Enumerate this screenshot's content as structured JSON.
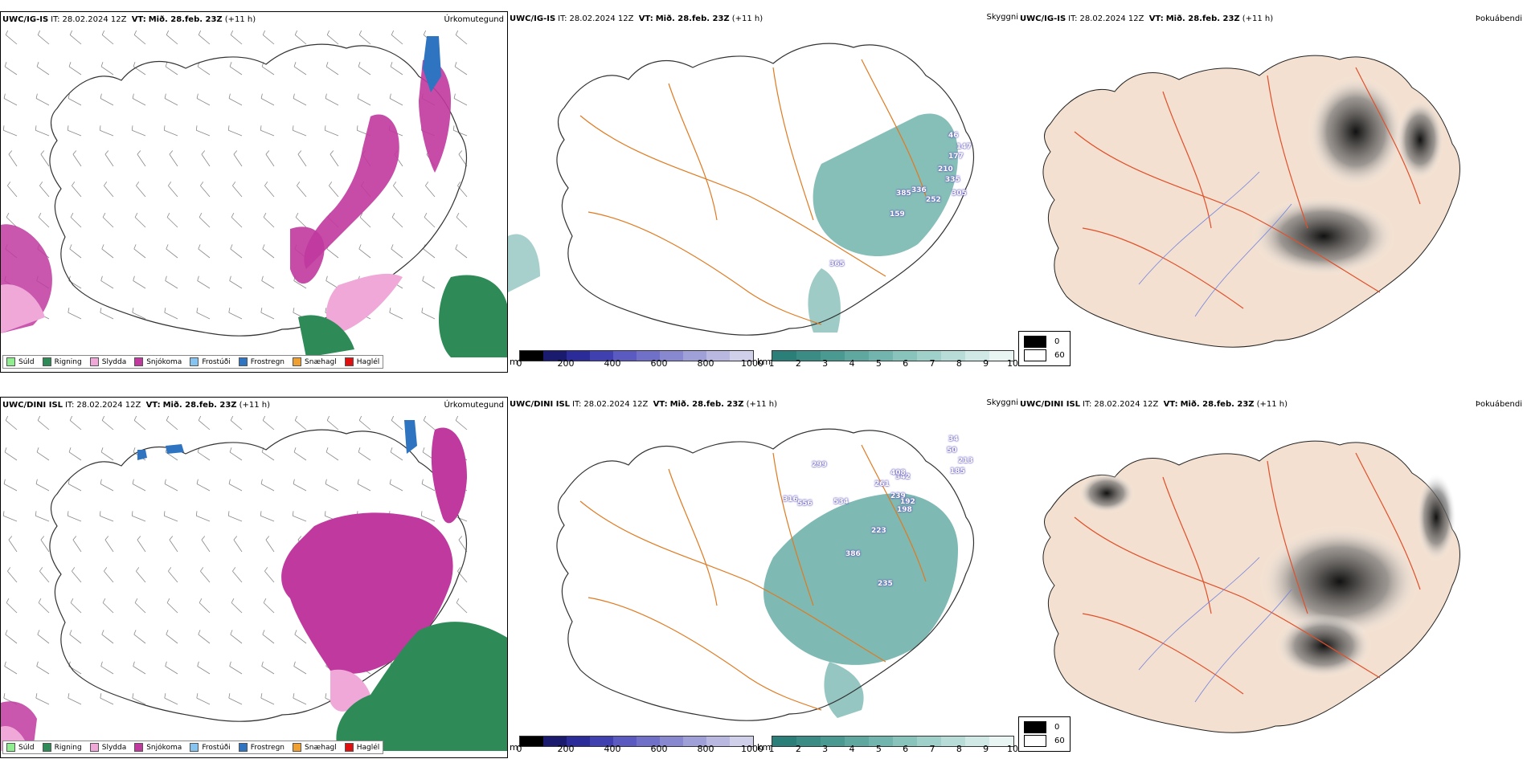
{
  "rows": [
    {
      "model": "UWC/IG-IS",
      "it_label": "IT:",
      "it_value": "28.02.2024 12Z",
      "vt_label": "VT:",
      "vt_value": "Mið. 28.feb. 23Z",
      "lead": "(+11 h)",
      "precip_title": "Úrkomutegund",
      "vis_title": "Skyggni",
      "fog_title": "Þokuábendi",
      "cloud_labels": [
        "46",
        "147",
        "177",
        "210",
        "335",
        "336",
        "385",
        "252",
        "159",
        "305",
        "365"
      ]
    },
    {
      "model": "UWC/DINI ISL",
      "it_label": "IT:",
      "it_value": "28.02.2024 12Z",
      "vt_label": "VT:",
      "vt_value": "Mið. 28.feb. 23Z",
      "lead": "(+11 h)",
      "precip_title": "Úrkomutegund",
      "vis_title": "Skyggni",
      "fog_title": "Þokuábendi",
      "cloud_labels": [
        "299",
        "316",
        "556",
        "534",
        "261",
        "342",
        "408",
        "34",
        "50",
        "213",
        "185",
        "239",
        "192",
        "198",
        "223",
        "386",
        "235"
      ]
    }
  ],
  "precip_legend": [
    {
      "label": "Súld",
      "color": "#90ee90"
    },
    {
      "label": "Rigning",
      "color": "#2e8b57"
    },
    {
      "label": "Slydda",
      "color": "#f0a8d8"
    },
    {
      "label": "Snjókoma",
      "color": "#c0399f"
    },
    {
      "label": "Frostúði",
      "color": "#87c3f0"
    },
    {
      "label": "Frostregn",
      "color": "#2f74c0"
    },
    {
      "label": "Snæhagl",
      "color": "#f0a030"
    },
    {
      "label": "Haglél",
      "color": "#e01010"
    }
  ],
  "cloud_base_scale": {
    "unit": "m",
    "ticks": [
      "0",
      "200",
      "400",
      "600",
      "800",
      "1000"
    ],
    "colors": [
      "#000000",
      "#1a1a6e",
      "#2b2b9a",
      "#4040b0",
      "#5a5ac0",
      "#7070c8",
      "#8888d0",
      "#a0a0d8",
      "#b8b8e0",
      "#d0d0ea"
    ]
  },
  "visibility_scale": {
    "unit": "km",
    "ticks": [
      "1",
      "2",
      "3",
      "4",
      "5",
      "6",
      "7",
      "8",
      "9",
      "10"
    ],
    "colors": [
      "#2a7f78",
      "#3a8c85",
      "#4a9a92",
      "#5ea8a0",
      "#72b5ae",
      "#88c3bc",
      "#a0d0ca",
      "#b8ddd8",
      "#d0e9e6",
      "#e8f5f3"
    ]
  },
  "fog_scale": {
    "entries": [
      {
        "label": "0",
        "color": "#000000"
      },
      {
        "label": "60",
        "color": "#ffffff"
      }
    ]
  },
  "colors": {
    "coast": "#333333",
    "roads": "#e07a20",
    "land_fog": "#f3e0d0",
    "fog_roads": "#e0502a",
    "fog_rivers": "#7080e0",
    "snow": "#c0399f",
    "rain": "#2e8b57",
    "sleet": "#f0a8d8",
    "freezing_rain": "#2f74c0",
    "visibility": "#5ea8a0"
  }
}
